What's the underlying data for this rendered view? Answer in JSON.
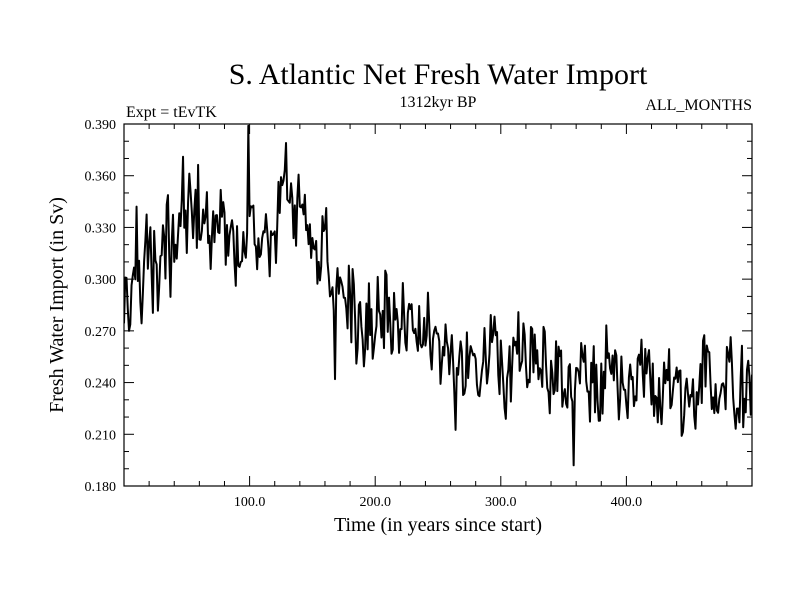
{
  "chart_data": {
    "type": "line",
    "title": "S. Atlantic Net Fresh Water Import",
    "subtitle_left": "Expt = tEvTK",
    "subtitle_center": "1312kyr BP",
    "subtitle_right": "ALL_MONTHS",
    "xlabel": "Time (in years since start)",
    "ylabel": "Fresh Water Import (in Sv)",
    "xlim": [
      0,
      500
    ],
    "ylim": [
      0.18,
      0.39
    ],
    "x_ticks": [
      100,
      200,
      300,
      400
    ],
    "x_tick_labels": [
      "100.0",
      "200.0",
      "300.0",
      "400.0"
    ],
    "y_ticks": [
      0.18,
      0.21,
      0.24,
      0.27,
      0.3,
      0.33,
      0.36,
      0.39
    ],
    "y_tick_labels": [
      "0.180",
      "0.210",
      "0.240",
      "0.270",
      "0.300",
      "0.330",
      "0.360",
      "0.390"
    ],
    "grid": false,
    "series": [
      {
        "name": "Net Fresh Water Import",
        "color": "#000000",
        "trend_x": [
          0,
          5,
          10,
          20,
          30,
          40,
          50,
          60,
          70,
          80,
          90,
          100,
          110,
          120,
          130,
          140,
          150,
          160,
          170,
          180,
          190,
          200,
          210,
          220,
          230,
          240,
          260,
          280,
          300,
          320,
          340,
          360,
          380,
          400,
          420,
          440,
          460,
          480,
          500
        ],
        "trend_y": [
          0.29,
          0.3,
          0.312,
          0.305,
          0.3,
          0.318,
          0.345,
          0.34,
          0.333,
          0.328,
          0.33,
          0.34,
          0.32,
          0.328,
          0.345,
          0.338,
          0.322,
          0.308,
          0.29,
          0.285,
          0.285,
          0.283,
          0.28,
          0.265,
          0.262,
          0.258,
          0.25,
          0.25,
          0.25,
          0.25,
          0.247,
          0.24,
          0.242,
          0.243,
          0.236,
          0.238,
          0.235,
          0.237,
          0.236
        ],
        "noise_amplitude": 0.014,
        "extremes": [
          {
            "x": 99,
            "y": 0.389
          },
          {
            "x": 129,
            "y": 0.379
          },
          {
            "x": 47,
            "y": 0.371
          },
          {
            "x": 168,
            "y": 0.242
          },
          {
            "x": 358,
            "y": 0.192
          },
          {
            "x": 4,
            "y": 0.27
          }
        ]
      }
    ]
  }
}
